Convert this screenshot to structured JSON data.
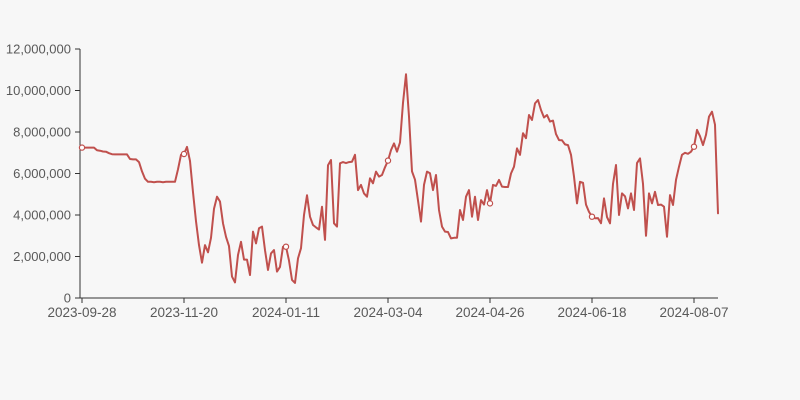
{
  "page": {
    "background_color": "#f7f7f7"
  },
  "chart_data": {
    "type": "line",
    "title": "",
    "xlabel": "",
    "ylabel": "",
    "grid": "off",
    "legend": "none",
    "line_color": "#c0504d",
    "marker_style": "empty-circle",
    "marker_fill": "#ffffff",
    "axis_color": "#333333",
    "label_color": "#595959",
    "ylim": [
      0,
      12000000
    ],
    "y_tick_values": [
      0,
      2000000,
      4000000,
      6000000,
      8000000,
      10000000,
      12000000
    ],
    "y_tick_labels": [
      "0",
      "2,000,000",
      "4,000,000",
      "6,000,000",
      "8,000,000",
      "10,000,000",
      "12,000,000"
    ],
    "x_tick_labels": [
      "2023-09-28",
      "2023-11-20",
      "2024-01-11",
      "2024-03-04",
      "2024-04-26",
      "2024-06-18",
      "2024-08-07"
    ],
    "x_tick_indices": [
      0,
      34,
      68,
      102,
      136,
      170,
      204
    ],
    "marker_indices": [
      0,
      34,
      68,
      102,
      136,
      170,
      204
    ],
    "values": [
      7250000,
      7250000,
      7250000,
      7250000,
      7250000,
      7120000,
      7100000,
      7060000,
      7050000,
      6980000,
      6930000,
      6920000,
      6920000,
      6920000,
      6920000,
      6920000,
      6700000,
      6680000,
      6680000,
      6550000,
      6100000,
      5750000,
      5600000,
      5600000,
      5580000,
      5600000,
      5600000,
      5580000,
      5600000,
      5600000,
      5600000,
      5600000,
      6200000,
      6900000,
      6940000,
      7280000,
      6600000,
      5100000,
      3700000,
      2550000,
      1700000,
      2550000,
      2200000,
      2900000,
      4300000,
      4880000,
      4650000,
      3600000,
      2950000,
      2500000,
      1030000,
      750000,
      2070000,
      2710000,
      1850000,
      1850000,
      1110000,
      3200000,
      2630000,
      3360000,
      3440000,
      2310000,
      1350000,
      2150000,
      2310000,
      1270000,
      1500000,
      2470000,
      2470000,
      1800000,
      870000,
      730000,
      1910000,
      2400000,
      4000000,
      4950000,
      3920000,
      3520000,
      3400000,
      3300000,
      4400000,
      2800000,
      6400000,
      6650000,
      3600000,
      3440000,
      6490000,
      6550000,
      6500000,
      6550000,
      6570000,
      6900000,
      5200000,
      5450000,
      5040000,
      4880000,
      5770000,
      5530000,
      6090000,
      5850000,
      5930000,
      6300000,
      6620000,
      7130000,
      7450000,
      7050000,
      7500000,
      9400000,
      10780000,
      8740000,
      6100000,
      5700000,
      4700000,
      3680000,
      5450000,
      6090000,
      6010000,
      5200000,
      5930000,
      4240000,
      3440000,
      3200000,
      3180000,
      2870000,
      2900000,
      2900000,
      4240000,
      3760000,
      4880000,
      5200000,
      3920000,
      4880000,
      3760000,
      4720000,
      4500000,
      5200000,
      4560000,
      5450000,
      5400000,
      5690000,
      5370000,
      5350000,
      5350000,
      6000000,
      6330000,
      7210000,
      6900000,
      7940000,
      7700000,
      8820000,
      8580000,
      9380000,
      9540000,
      9060000,
      8700000,
      8820000,
      8500000,
      8550000,
      7900000,
      7610000,
      7600000,
      7400000,
      7370000,
      6900000,
      5850000,
      4560000,
      5600000,
      5550000,
      4500000,
      4150000,
      3920000,
      3840000,
      3850000,
      3600000,
      4800000,
      3900000,
      3600000,
      5500000,
      6410000,
      4000000,
      5040000,
      4900000,
      4320000,
      5040000,
      4240000,
      6500000,
      6730000,
      5500000,
      3000000,
      5040000,
      4560000,
      5120000,
      4480000,
      4500000,
      4400000,
      2950000,
      4960000,
      4480000,
      5690000,
      6330000,
      6900000,
      7000000,
      6950000,
      7050000,
      7290000,
      8100000,
      7800000,
      7370000,
      7860000,
      8740000,
      8980000,
      8350000,
      4080000
    ]
  }
}
